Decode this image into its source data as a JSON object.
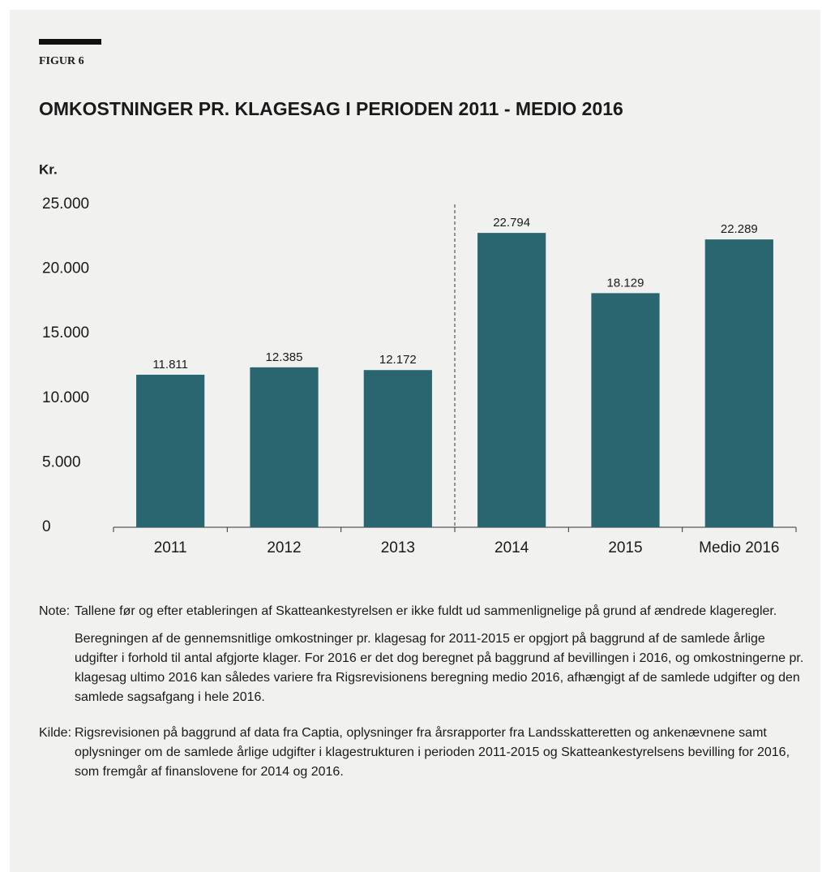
{
  "figure_label": "FIGUR 6",
  "chart_data": {
    "type": "bar",
    "title": "OMKOSTNINGER PR. KLAGESAG I PERIODEN 2011 - MEDIO 2016",
    "y_label": "Kr.",
    "categories": [
      "2011",
      "2012",
      "2013",
      "2014",
      "2015",
      "Medio 2016"
    ],
    "values": [
      11811,
      12385,
      12172,
      22794,
      18129,
      22289
    ],
    "value_labels": [
      "11.811",
      "12.385",
      "12.172",
      "22.794",
      "18.129",
      "22.289"
    ],
    "color": "#2a6670",
    "ylim": [
      0,
      25000
    ],
    "yticks": [
      0,
      {
        "value": 5000,
        "label": "5.000"
      },
      {
        "value": 10000,
        "label": "10.000"
      },
      {
        "value": 15000,
        "label": "15.000"
      },
      {
        "value": 20000,
        "label": "20.000"
      },
      {
        "value": 25000,
        "label": "25.000"
      }
    ],
    "grid": false
  },
  "notes": [
    {
      "label": "Note:",
      "paragraphs": [
        "Tallene før og efter etableringen af Skatteankestyrelsen er ikke fuldt ud sammenlignelige på grund af ændrede klageregler.",
        "Beregningen af de gennemsnitlige omkostninger pr. klagesag for 2011-2015 er opgjort på baggrund af de samlede årlige udgifter i forhold til antal afgjorte klager. For 2016 er det dog beregnet på baggrund af bevillingen i 2016, og omkostningerne pr. klagesag ultimo 2016 kan således variere fra Rigsrevisionens beregning medio 2016, afhængigt af de samlede udgifter og den samlede sagsafgang i hele 2016."
      ]
    },
    {
      "label": "Kilde:",
      "paragraphs": [
        "Rigsrevisionen på baggrund af data fra Captia, oplysninger fra årsrapporter fra Landsskatteretten og ankenævnene samt oplysninger om de samlede årlige udgifter i klagestrukturen i perioden 2011-2015 og Skatteankestyrelsens bevilling for 2016, som fremgår af finanslovene for 2014 og 2016."
      ]
    }
  ]
}
